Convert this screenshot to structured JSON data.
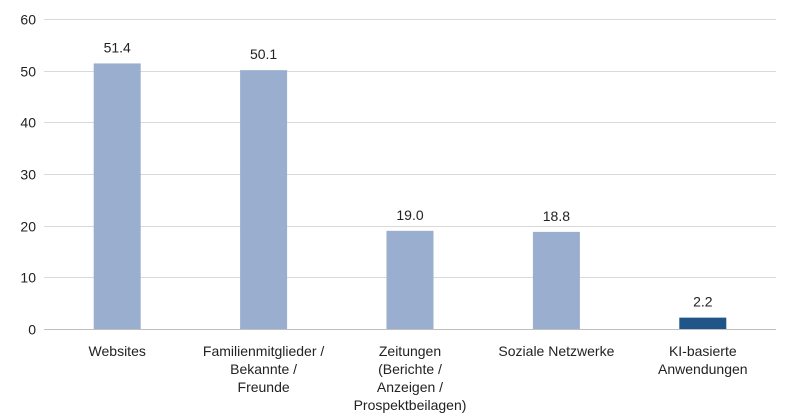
{
  "chart_data": {
    "type": "bar",
    "title": "",
    "xlabel": "",
    "ylabel": "",
    "ylim": [
      0,
      60
    ],
    "yticks": [
      0,
      10,
      20,
      30,
      40,
      50,
      60
    ],
    "grid": true,
    "categories": [
      [
        "Websites"
      ],
      [
        "Familienmitglieder /",
        "Bekannte /",
        "Freunde"
      ],
      [
        "Zeitungen",
        "(Berichte /",
        "Anzeigen /",
        "Prospektbeilagen)"
      ],
      [
        "Soziale Netzwerke"
      ],
      [
        "KI-basierte",
        "Anwendungen"
      ]
    ],
    "values": [
      51.4,
      50.1,
      19.0,
      18.8,
      2.2
    ],
    "value_labels": [
      "51.4",
      "50.1",
      "19.0",
      "18.8",
      "2.2"
    ],
    "colors": [
      "#9aaecf",
      "#9aaecf",
      "#9aaecf",
      "#9aaecf",
      "#1f5589"
    ]
  }
}
